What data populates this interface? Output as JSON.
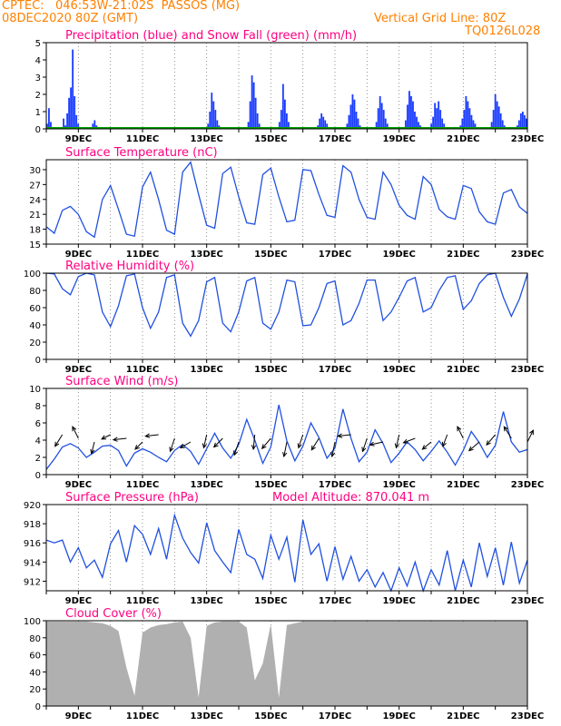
{
  "header": {
    "source": "CPTEC:",
    "coords": "046:53W-21:02S",
    "station": "PASSOS (MG)",
    "run": "08DEC2020 80Z (GMT)",
    "grid_note": "Vertical Grid Line: 80Z",
    "model": "TQ0126L028"
  },
  "colors": {
    "precip": "#1a3cff",
    "snow": "#00a000",
    "line": "#2050e0",
    "cloud": "#b0b0b0",
    "title": "#ff0080",
    "header": "#ff8000"
  },
  "date_labels": [
    "9DEC",
    "11DEC",
    "13DEC",
    "15DEC",
    "17DEC",
    "19DEC",
    "21DEC",
    "23DEC"
  ],
  "chart_data": [
    {
      "type": "bar",
      "title": "Precipitation (blue) and Snow Fall (green) (mm/h)",
      "ylim": [
        0,
        5
      ],
      "yticks": [
        "0",
        "1",
        "2",
        "3",
        "4",
        "5"
      ],
      "series": [
        {
          "name": "Precipitation",
          "values": [
            0.3,
            1.2,
            0.4,
            0.1,
            0,
            0,
            0,
            0,
            0,
            0.6,
            0.2,
            0.9,
            1.8,
            2.4,
            4.6,
            1.9,
            0.8,
            0.3,
            0.1,
            0,
            0,
            0,
            0,
            0,
            0.1,
            0.3,
            0.5,
            0.2,
            0,
            0,
            0,
            0,
            0,
            0,
            0,
            0,
            0,
            0,
            0,
            0,
            0,
            0,
            0,
            0,
            0,
            0,
            0,
            0,
            0,
            0,
            0,
            0,
            0,
            0,
            0,
            0,
            0,
            0,
            0,
            0,
            0,
            0,
            0,
            0,
            0,
            0,
            0,
            0,
            0,
            0,
            0,
            0,
            0,
            0,
            0,
            0,
            0,
            0,
            0,
            0,
            0,
            0,
            0,
            0,
            0,
            0,
            0,
            0,
            0.3,
            1.0,
            2.1,
            1.6,
            1.1,
            0.5,
            0.2,
            0,
            0,
            0,
            0,
            0,
            0,
            0,
            0,
            0,
            0,
            0,
            0,
            0,
            0,
            0,
            0.4,
            1.6,
            3.1,
            2.7,
            1.8,
            0.9,
            0.3,
            0,
            0,
            0,
            0,
            0,
            0,
            0,
            0,
            0,
            0.1,
            0.4,
            1.1,
            2.6,
            1.7,
            0.9,
            0.4,
            0.1,
            0,
            0,
            0,
            0,
            0,
            0,
            0,
            0,
            0,
            0,
            0,
            0,
            0,
            0,
            0.2,
            0.6,
            0.9,
            0.7,
            0.5,
            0.3,
            0,
            0,
            0,
            0,
            0,
            0,
            0,
            0,
            0,
            0,
            0.3,
            0.8,
            1.4,
            2.0,
            1.7,
            1.0,
            0.6,
            0.2,
            0,
            0,
            0,
            0,
            0,
            0,
            0,
            0,
            0.4,
            1.2,
            1.9,
            1.5,
            1.1,
            0.6,
            0.3,
            0,
            0,
            0,
            0,
            0,
            0,
            0,
            0,
            0,
            0.5,
            1.4,
            2.2,
            1.9,
            1.6,
            1.0,
            0.7,
            0.4,
            0.2,
            0,
            0,
            0,
            0,
            0,
            0.3,
            0.7,
            1.5,
            1.2,
            1.6,
            1.1,
            0.6,
            0.3,
            0,
            0,
            0,
            0,
            0,
            0,
            0,
            0,
            0.2,
            0.6,
            1.1,
            1.9,
            1.6,
            1.2,
            0.8,
            0.5,
            0.3,
            0.1,
            0,
            0,
            0,
            0,
            0,
            0,
            0,
            0.4,
            1.1,
            2.0,
            1.6,
            1.3,
            0.9,
            0.5,
            0.2,
            0,
            0,
            0,
            0,
            0,
            0,
            0.2,
            0.5,
            0.9,
            1.0,
            0.8,
            0.6
          ]
        },
        {
          "name": "Snow Fall",
          "values": [
            0
          ]
        }
      ]
    },
    {
      "type": "line",
      "title": "Surface Temperature (nC)",
      "ylim": [
        15,
        32
      ],
      "yticks": [
        "15",
        "18",
        "21",
        "24",
        "27",
        "30"
      ],
      "x": [
        0,
        0.25,
        0.5,
        0.75,
        1,
        1.25,
        1.5,
        1.75,
        2,
        2.25,
        2.5,
        2.75,
        3,
        3.25,
        3.5,
        3.75,
        4,
        4.25,
        4.5,
        4.75,
        5,
        5.25,
        5.5,
        5.75,
        6,
        6.25,
        6.5,
        6.75,
        7,
        7.25,
        7.5,
        7.75,
        8,
        8.25,
        8.5,
        8.75,
        9,
        9.25,
        9.5,
        9.75,
        10,
        10.25,
        10.5,
        10.75,
        11,
        11.25,
        11.5,
        11.75,
        12,
        12.25,
        12.5,
        12.75,
        13,
        13.25,
        13.5,
        13.75,
        14,
        14.25,
        14.5,
        14.75,
        15
      ],
      "values": [
        18.5,
        17.2,
        21.8,
        22.6,
        21.0,
        17.5,
        16.4,
        24.0,
        26.8,
        22.0,
        17.0,
        16.6,
        26.5,
        29.5,
        24.0,
        17.8,
        17.0,
        29.5,
        31.5,
        25.0,
        18.8,
        18.2,
        29.2,
        30.5,
        24.5,
        19.3,
        19.0,
        29.0,
        30.3,
        24.5,
        19.5,
        19.8,
        30.0,
        29.8,
        25.0,
        20.8,
        20.4,
        30.8,
        29.5,
        24.0,
        20.4,
        20.0,
        29.5,
        27.0,
        22.8,
        20.8,
        20.0,
        28.6,
        27.0,
        22.0,
        20.5,
        20.0,
        26.8,
        26.2,
        21.5,
        19.5,
        19.0,
        25.3,
        26.0,
        22.5,
        21.2
      ]
    },
    {
      "type": "line",
      "title": "Relative Humidity (%)",
      "ylim": [
        0,
        100
      ],
      "yticks": [
        "0",
        "20",
        "40",
        "60",
        "80",
        "100"
      ],
      "x": [
        0,
        0.25,
        0.5,
        0.75,
        1,
        1.25,
        1.5,
        1.75,
        2,
        2.25,
        2.5,
        2.75,
        3,
        3.25,
        3.5,
        3.75,
        4,
        4.25,
        4.5,
        4.75,
        5,
        5.25,
        5.5,
        5.75,
        6,
        6.25,
        6.5,
        6.75,
        7,
        7.25,
        7.5,
        7.75,
        8,
        8.25,
        8.5,
        8.75,
        9,
        9.25,
        9.5,
        9.75,
        10,
        10.25,
        10.5,
        10.75,
        11,
        11.25,
        11.5,
        11.75,
        12,
        12.25,
        12.5,
        12.75,
        13,
        13.25,
        13.5,
        13.75,
        14,
        14.25,
        14.5,
        14.75,
        15
      ],
      "values": [
        100,
        99,
        82,
        75,
        96,
        100,
        98,
        55,
        38,
        62,
        97,
        99,
        60,
        36,
        55,
        95,
        98,
        42,
        27,
        45,
        90,
        95,
        42,
        32,
        55,
        91,
        95,
        42,
        35,
        55,
        92,
        90,
        39,
        40,
        60,
        88,
        91,
        40,
        45,
        65,
        92,
        92,
        45,
        55,
        72,
        91,
        95,
        55,
        60,
        80,
        95,
        97,
        58,
        68,
        88,
        98,
        100,
        72,
        50,
        70,
        99
      ]
    },
    {
      "type": "line",
      "title": "Surface Wind (m/s)",
      "ylim": [
        0,
        10
      ],
      "yticks": [
        "0",
        "2",
        "4",
        "6",
        "8",
        "10"
      ],
      "x": [
        0,
        0.25,
        0.5,
        0.75,
        1,
        1.25,
        1.5,
        1.75,
        2,
        2.25,
        2.5,
        2.75,
        3,
        3.25,
        3.5,
        3.75,
        4,
        4.25,
        4.5,
        4.75,
        5,
        5.25,
        5.5,
        5.75,
        6,
        6.25,
        6.5,
        6.75,
        7,
        7.25,
        7.5,
        7.75,
        8,
        8.25,
        8.5,
        8.75,
        9,
        9.25,
        9.5,
        9.75,
        10,
        10.25,
        10.5,
        10.75,
        11,
        11.25,
        11.5,
        11.75,
        12,
        12.25,
        12.5,
        12.75,
        13,
        13.25,
        13.5,
        13.75,
        14,
        14.25,
        14.5,
        14.75,
        15
      ],
      "values": [
        0.6,
        1.8,
        3.2,
        3.6,
        3.1,
        2.0,
        2.6,
        3.3,
        3.4,
        2.8,
        1.0,
        2.5,
        3.0,
        2.6,
        2.0,
        1.5,
        2.8,
        3.5,
        2.7,
        1.2,
        3.0,
        4.8,
        3.1,
        1.9,
        3.5,
        6.4,
        4.0,
        1.3,
        3.2,
        8.1,
        3.9,
        1.6,
        3.3,
        6.0,
        4.3,
        1.9,
        3.1,
        7.6,
        4.2,
        1.5,
        2.6,
        5.2,
        3.6,
        1.4,
        2.5,
        3.8,
        2.9,
        1.6,
        2.7,
        3.9,
        2.6,
        1.1,
        2.8,
        5.0,
        3.7,
        2.0,
        3.4,
        7.3,
        3.8,
        2.6,
        2.9
      ]
    },
    {
      "type": "line",
      "title": "Surface Pressure (hPa)",
      "annotation": "Model Altitude:  870.041 m",
      "ylim": [
        911,
        920
      ],
      "yticks": [
        "912",
        "914",
        "916",
        "918",
        "920"
      ],
      "x": [
        0,
        0.25,
        0.5,
        0.75,
        1,
        1.25,
        1.5,
        1.75,
        2,
        2.25,
        2.5,
        2.75,
        3,
        3.25,
        3.5,
        3.75,
        4,
        4.25,
        4.5,
        4.75,
        5,
        5.25,
        5.5,
        5.75,
        6,
        6.25,
        6.5,
        6.75,
        7,
        7.25,
        7.5,
        7.75,
        8,
        8.25,
        8.5,
        8.75,
        9,
        9.25,
        9.5,
        9.75,
        10,
        10.25,
        10.5,
        10.75,
        11,
        11.25,
        11.5,
        11.75,
        12,
        12.25,
        12.5,
        12.75,
        13,
        13.25,
        13.5,
        13.75,
        14,
        14.25,
        14.5,
        14.75,
        15
      ],
      "values": [
        916.3,
        916.0,
        916.3,
        914.0,
        915.5,
        913.4,
        914.2,
        912.4,
        915.9,
        917.3,
        914.0,
        917.8,
        916.9,
        914.8,
        917.5,
        914.3,
        918.9,
        916.5,
        915.0,
        913.9,
        918.1,
        915.2,
        914.0,
        912.9,
        917.4,
        914.8,
        914.3,
        912.3,
        916.8,
        914.3,
        916.6,
        911.9,
        918.4,
        914.8,
        915.9,
        912.0,
        915.6,
        912.2,
        914.6,
        912.0,
        913.2,
        911.4,
        912.9,
        911.0,
        913.4,
        911.5,
        914.0,
        910.9,
        913.2,
        911.6,
        915.2,
        911.0,
        914.2,
        911.4,
        916.0,
        912.5,
        915.5,
        911.6,
        916.1,
        911.8,
        914.2
      ]
    },
    {
      "type": "area",
      "title": "Cloud Cover (%)",
      "ylim": [
        0,
        100
      ],
      "yticks": [
        "0",
        "20",
        "40",
        "60",
        "80",
        "100"
      ],
      "x": [
        0,
        0.25,
        0.5,
        0.75,
        1,
        1.25,
        1.5,
        1.75,
        2,
        2.25,
        2.5,
        2.75,
        3,
        3.25,
        3.5,
        3.75,
        4,
        4.25,
        4.5,
        4.75,
        5,
        5.25,
        5.5,
        5.75,
        6,
        6.25,
        6.5,
        6.75,
        7,
        7.25,
        7.5,
        7.75,
        8,
        8.25,
        8.5,
        8.75,
        9,
        9.25,
        9.5,
        9.75,
        10,
        10.25,
        10.5,
        10.75,
        11,
        11.25,
        11.5,
        11.75,
        12,
        12.25,
        12.5,
        12.75,
        13,
        13.25,
        13.5,
        13.75,
        14,
        14.25,
        14.5,
        14.75,
        15
      ],
      "values": [
        99,
        99,
        99,
        99,
        99,
        99,
        98,
        97,
        94,
        88,
        45,
        12,
        86,
        92,
        95,
        96,
        98,
        99,
        80,
        10,
        94,
        98,
        99,
        99,
        99,
        92,
        30,
        50,
        96,
        10,
        95,
        97,
        99,
        99,
        99,
        99,
        99,
        99,
        99,
        99,
        99,
        99,
        99,
        99,
        99,
        99,
        99,
        99,
        99,
        99,
        99,
        99,
        99,
        99,
        99,
        99,
        99,
        99,
        99,
        99,
        99
      ]
    }
  ],
  "wind_arrows": [
    {
      "u": 0.5,
      "v": 0.8
    },
    {
      "u": 0.4,
      "v": -0.8
    },
    {
      "u": 0.2,
      "v": 0.8
    },
    {
      "u": 0.6,
      "v": 0.3
    },
    {
      "u": 0.9,
      "v": 0.1
    },
    {
      "u": 0.5,
      "v": 0.5
    },
    {
      "u": 0.9,
      "v": 0.1
    },
    {
      "u": 0.3,
      "v": 0.9
    },
    {
      "u": 0.7,
      "v": 0.4
    },
    {
      "u": 0.2,
      "v": 0.9
    },
    {
      "u": 0.6,
      "v": 0.6
    },
    {
      "u": 0.3,
      "v": 0.9
    },
    {
      "u": 0.1,
      "v": 1.0
    },
    {
      "u": 0.6,
      "v": 0.7
    },
    {
      "u": 0.2,
      "v": 1.0
    },
    {
      "u": 0.3,
      "v": 0.9
    },
    {
      "u": 0.5,
      "v": 0.8
    },
    {
      "u": 0.2,
      "v": 1.0
    },
    {
      "u": 0.9,
      "v": 0.1
    },
    {
      "u": 0.3,
      "v": 0.9
    },
    {
      "u": 0.9,
      "v": 0.2
    },
    {
      "u": 0.2,
      "v": 0.9
    },
    {
      "u": 0.8,
      "v": 0.3
    },
    {
      "u": 0.6,
      "v": 0.5
    },
    {
      "u": 0.3,
      "v": 0.8
    },
    {
      "u": 0.4,
      "v": -0.8
    },
    {
      "u": 0.7,
      "v": 0.6
    },
    {
      "u": 0.6,
      "v": 0.7
    },
    {
      "u": 0.5,
      "v": -0.8
    },
    {
      "u": -0.4,
      "v": -0.8
    }
  ]
}
